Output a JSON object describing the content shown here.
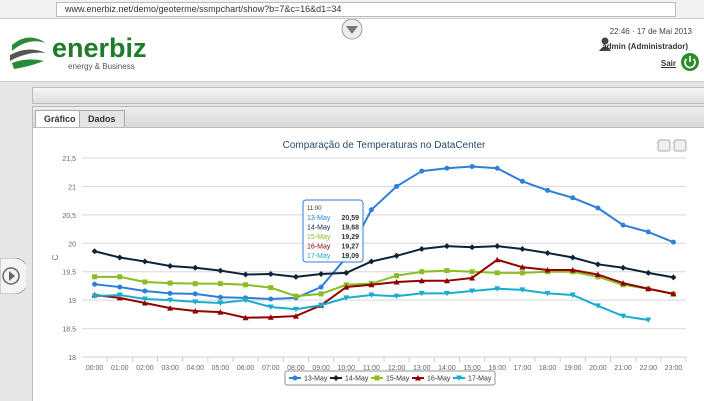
{
  "browser": {
    "url": "www.enerbiz.net/demo/geoterme/ssmpchart/show?b=7&c=16&d1=34"
  },
  "header": {
    "logo": "enerbiz",
    "tagline": "energy & Business",
    "datetime": "22:46 · 17 de Mai 2013",
    "user": "admin (Administrador)",
    "logout": "Sair"
  },
  "tabs": [
    "Gráfico",
    "Dados"
  ],
  "chart_data": {
    "type": "line",
    "title": "Comparação de Temperaturas no DataCenter",
    "y_label": "C",
    "categories": [
      "00:00",
      "01:00",
      "02:00",
      "03:00",
      "04:00",
      "05:00",
      "06:00",
      "07:00",
      "08:00",
      "09:00",
      "10:00",
      "11:00",
      "12:00",
      "13:00",
      "14:00",
      "15:00",
      "16:00",
      "17:00",
      "18:00",
      "19:00",
      "20:00",
      "21:00",
      "22:00",
      "23:00"
    ],
    "ylim": [
      18,
      21.5
    ],
    "yticks": [
      18,
      {
        "value": 18.5,
        "label": "18,5"
      },
      19,
      {
        "value": 19.5,
        "label": "19,5"
      },
      20,
      {
        "value": 20.5,
        "label": "20,5"
      },
      21,
      {
        "value": 21.5,
        "label": "21,5"
      }
    ],
    "grid": true,
    "legend": "bottom",
    "series": [
      {
        "name": "13-May",
        "color": "#2f7ed8",
        "marker": "circle",
        "values": [
          19.28,
          19.23,
          19.16,
          19.12,
          19.11,
          19.05,
          19.04,
          19.02,
          19.04,
          19.23,
          19.75,
          20.59,
          21.0,
          21.27,
          21.32,
          21.35,
          21.32,
          21.09,
          20.93,
          20.8,
          20.62,
          20.32,
          20.2,
          20.02
        ],
        "value_labels": [
          null,
          null,
          null,
          null,
          null,
          null,
          null,
          null,
          null,
          null,
          null,
          "20,59",
          null,
          null,
          null,
          null,
          null,
          null,
          null,
          null,
          null,
          null,
          null,
          null
        ]
      },
      {
        "name": "14-May",
        "color": "#0d233a",
        "marker": "diamond",
        "values": [
          19.86,
          19.75,
          19.68,
          19.6,
          19.57,
          19.52,
          19.45,
          19.46,
          19.41,
          19.46,
          19.48,
          19.68,
          19.78,
          19.9,
          19.95,
          19.93,
          19.95,
          19.9,
          19.83,
          19.75,
          19.63,
          19.57,
          19.48,
          19.4
        ],
        "value_labels": [
          null,
          null,
          null,
          null,
          null,
          null,
          null,
          null,
          null,
          null,
          null,
          "19,68",
          null,
          null,
          null,
          null,
          null,
          null,
          null,
          null,
          null,
          null,
          null,
          null
        ]
      },
      {
        "name": "15-May",
        "color": "#8bbc21",
        "marker": "square",
        "values": [
          19.41,
          19.41,
          19.32,
          19.3,
          19.29,
          19.29,
          19.27,
          19.22,
          19.07,
          19.11,
          19.27,
          19.29,
          19.43,
          19.5,
          19.52,
          19.5,
          19.48,
          19.48,
          19.5,
          19.5,
          19.41,
          19.27,
          19.2,
          19.11
        ],
        "value_labels": [
          null,
          null,
          null,
          null,
          null,
          null,
          null,
          null,
          null,
          null,
          null,
          "19,29",
          null,
          null,
          null,
          null,
          null,
          null,
          null,
          null,
          null,
          null,
          null,
          null
        ]
      },
      {
        "name": "16-May",
        "color": "#910000",
        "marker": "triangle",
        "values": [
          19.09,
          19.04,
          18.95,
          18.86,
          18.81,
          18.79,
          18.69,
          18.7,
          18.72,
          18.91,
          19.23,
          19.27,
          19.32,
          19.34,
          19.34,
          19.39,
          19.71,
          19.58,
          19.53,
          19.53,
          19.45,
          19.3,
          19.2,
          19.11
        ],
        "value_labels": [
          null,
          null,
          null,
          null,
          null,
          null,
          null,
          null,
          null,
          null,
          null,
          "19,27",
          null,
          null,
          null,
          null,
          null,
          null,
          null,
          null,
          null,
          null,
          null,
          null
        ]
      },
      {
        "name": "17-May",
        "color": "#1aadce",
        "marker": "triangle-down",
        "values": [
          19.07,
          19.09,
          19.02,
          19.0,
          18.97,
          18.95,
          19.0,
          18.88,
          18.84,
          18.91,
          19.04,
          19.09,
          19.07,
          19.12,
          19.12,
          19.16,
          19.2,
          19.18,
          19.12,
          19.09,
          18.9,
          18.72,
          18.65,
          null
        ],
        "value_labels": [
          null,
          null,
          null,
          null,
          null,
          null,
          null,
          null,
          null,
          null,
          null,
          "19,09",
          null,
          null,
          null,
          null,
          null,
          null,
          null,
          null,
          null,
          null,
          null,
          null
        ]
      }
    ]
  }
}
